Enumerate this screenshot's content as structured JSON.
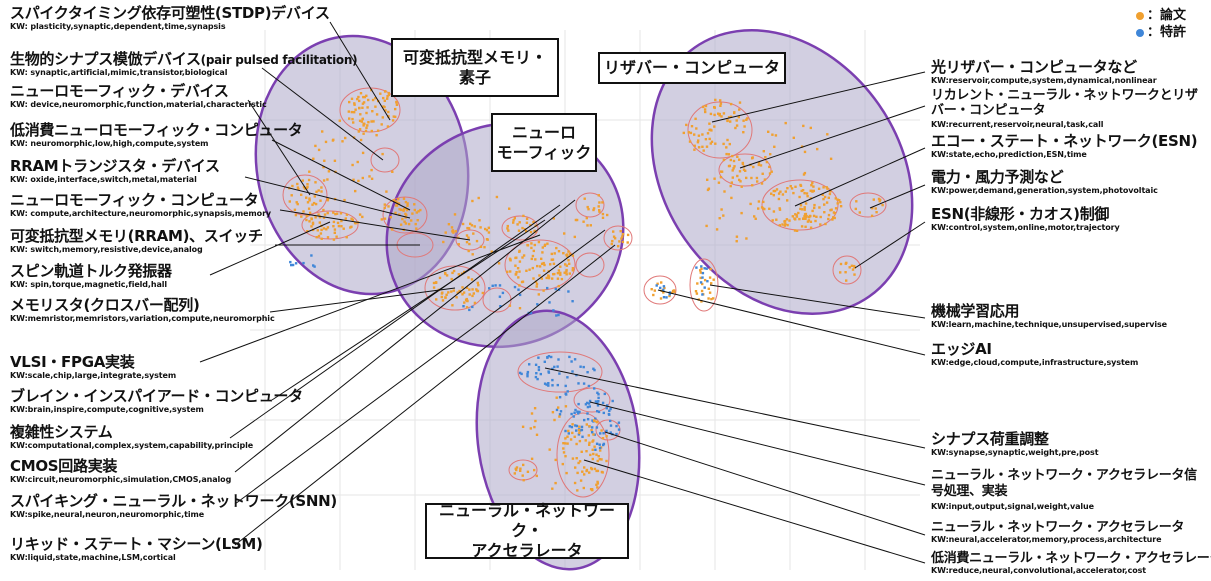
{
  "legend": {
    "items": [
      {
        "label": "：論文",
        "color": "#f0a030"
      },
      {
        "label": "：特許",
        "color": "#3f86d8"
      }
    ]
  },
  "clusters": [
    {
      "key": "memory",
      "title": "可変抵抗型メモリ・\n素子"
    },
    {
      "key": "neuromorphic",
      "title": "ニューロ\nモーフィック"
    },
    {
      "key": "reservoir",
      "title": "リザバー・コンピュータ"
    },
    {
      "key": "accelerator",
      "title": "ニューラル・ネットワーク・\nアクセラレータ"
    }
  ],
  "left_labels": [
    {
      "title": "スパイクタイミング依存可塑性(STDP)デバイス",
      "kw": "KW: plasticity,synaptic,dependent,time,synapsis"
    },
    {
      "title": "生物的シナプス模倣デバイス",
      "title_suffix": "(pair pulsed facilitation)",
      "kw": "KW: synaptic,artificial,mimic,transistor,biological"
    },
    {
      "title": "ニューロモーフィック・デバイス",
      "kw": "KW: device,neuromorphic,function,material,characteristic"
    },
    {
      "title": "低消費ニューロモーフィック・コンピュータ",
      "kw": "KW: neuromorphic,low,high,compute,system"
    },
    {
      "title": "RRAMトランジスタ・デバイス",
      "kw": "KW: oxide,interface,switch,metal,material"
    },
    {
      "title": "ニューロモーフィック・コンピュータ",
      "kw": "KW: compute,architecture,neuromorphic,synapsis,memory"
    },
    {
      "title": "可変抵抗型メモリ(RRAM)、スイッチ",
      "kw": "KW: switch,memory,resistive,device,analog"
    },
    {
      "title": "スピン軌道トルク発振器",
      "kw": "KW: spin,torque,magnetic,field,hall"
    },
    {
      "title": "メモリスタ(クロスバー配列)",
      "kw": "KW:memristor,memristors,variation,compute,neuromorphic"
    },
    {
      "title": "VLSI・FPGA実装",
      "kw": "KW:scale,chip,large,integrate,system"
    },
    {
      "title": "ブレイン・インスパイアード・コンピュータ",
      "kw": "KW:brain,inspire,compute,cognitive,system"
    },
    {
      "title": "複雑性システム",
      "kw": "KW:computational,complex,system,capability,principle"
    },
    {
      "title": "CMOS回路実装",
      "kw": "KW:circuit,neuromorphic,simulation,CMOS,analog"
    },
    {
      "title": "スパイキング・ニューラル・ネットワーク(SNN)",
      "kw": "KW:spike,neural,neuron,neuromorphic,time"
    },
    {
      "title": "リキッド・ステート・マシーン(LSM)",
      "kw": "KW:liquid,state,machine,LSM,cortical"
    }
  ],
  "right_labels": [
    {
      "title": "光リザバー・コンピュータなど",
      "kw": "KW:reservoir,compute,system,dynamical,nonlinear"
    },
    {
      "title": "リカレント・ニューラル・ネットワークとリザバー・コンピュータ",
      "kw": "KW:recurrent,reservoir,neural,task,call"
    },
    {
      "title": "エコー・ステート・ネットワーク(ESN)",
      "kw": "KW:state,echo,prediction,ESN,time"
    },
    {
      "title": "電力・風力予測など",
      "kw": "KW:power,demand,generation,system,photovoltaic"
    },
    {
      "title": "ESN(非線形・カオス)制御",
      "kw": "KW:control,system,online,motor,trajectory"
    },
    {
      "title": "機械学習応用",
      "kw": "KW:learn,machine,technique,unsupervised,supervise"
    },
    {
      "title": "エッジAI",
      "kw": "KW:edge,cloud,compute,infrastructure,system"
    },
    {
      "title": "シナプス荷重調整",
      "kw": "KW:synapse,synaptic,weight,pre,post"
    },
    {
      "title": "ニューラル・ネットワーク・アクセラレータ信号処理、実装",
      "kw": "KW:input,output,signal,weight,value"
    },
    {
      "title": "ニューラル・ネットワーク・アクセラレータ",
      "kw": "KW:neural,accelerator,memory,process,architecture"
    },
    {
      "title": "低消費ニューラル・ネットワーク・アクセラレータ",
      "kw": "KW:reduce,neural,convolutional,accelerator,cost"
    }
  ],
  "colors": {
    "paper": "#f0a030",
    "patent": "#3f86d8",
    "cluster_fill": "#ada8c9",
    "cluster_stroke": "#7b3fb0",
    "sub_cluster": "#e07878"
  }
}
